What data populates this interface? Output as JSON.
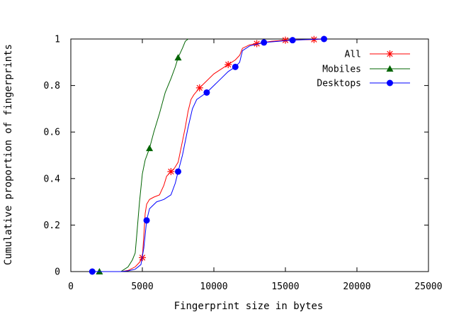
{
  "chart_data": {
    "type": "line",
    "xlabel": "Fingerprint size in bytes",
    "ylabel": "Cumulative proportion of fingerprints",
    "xlim": [
      0,
      25000
    ],
    "ylim": [
      0,
      1
    ],
    "xticks": [
      0,
      5000,
      10000,
      15000,
      20000,
      25000
    ],
    "yticks": [
      0,
      0.2,
      0.4,
      0.6,
      0.8,
      1
    ],
    "ytick_labels": [
      "0",
      "0.2",
      "0.4",
      "0.6",
      "0.8",
      "1"
    ],
    "grid": false,
    "legend_position": "top-right",
    "series": [
      {
        "name": "All",
        "color": "#ff0000",
        "marker": "star",
        "points": [
          [
            1500,
            0
          ],
          [
            3500,
            0
          ],
          [
            4000,
            0.005
          ],
          [
            4500,
            0.02
          ],
          [
            4800,
            0.04
          ],
          [
            5000,
            0.06
          ],
          [
            5100,
            0.15
          ],
          [
            5200,
            0.25
          ],
          [
            5300,
            0.29
          ],
          [
            5500,
            0.31
          ],
          [
            5800,
            0.32
          ],
          [
            6200,
            0.33
          ],
          [
            6500,
            0.37
          ],
          [
            6700,
            0.41
          ],
          [
            7000,
            0.43
          ],
          [
            7200,
            0.44
          ],
          [
            7500,
            0.47
          ],
          [
            7800,
            0.56
          ],
          [
            8000,
            0.62
          ],
          [
            8200,
            0.69
          ],
          [
            8400,
            0.74
          ],
          [
            8600,
            0.76
          ],
          [
            9000,
            0.79
          ],
          [
            9500,
            0.82
          ],
          [
            10000,
            0.85
          ],
          [
            10500,
            0.87
          ],
          [
            11000,
            0.89
          ],
          [
            11500,
            0.91
          ],
          [
            11800,
            0.93
          ],
          [
            12000,
            0.96
          ],
          [
            12500,
            0.975
          ],
          [
            13000,
            0.98
          ],
          [
            14000,
            0.99
          ],
          [
            15000,
            0.995
          ],
          [
            17000,
            0.998
          ],
          [
            17700,
            1.0
          ]
        ],
        "markers_at": [
          [
            5000,
            0.06
          ],
          [
            7000,
            0.43
          ],
          [
            9000,
            0.79
          ],
          [
            11000,
            0.89
          ],
          [
            13000,
            0.98
          ],
          [
            15000,
            0.995
          ],
          [
            17000,
            0.998
          ]
        ]
      },
      {
        "name": "Mobiles",
        "color": "#006400",
        "marker": "triangle",
        "points": [
          [
            1500,
            0
          ],
          [
            2000,
            0
          ],
          [
            3500,
            0
          ],
          [
            4000,
            0.02
          ],
          [
            4300,
            0.05
          ],
          [
            4500,
            0.08
          ],
          [
            4600,
            0.15
          ],
          [
            4800,
            0.3
          ],
          [
            5000,
            0.42
          ],
          [
            5200,
            0.48
          ],
          [
            5500,
            0.53
          ],
          [
            5800,
            0.6
          ],
          [
            6200,
            0.68
          ],
          [
            6600,
            0.77
          ],
          [
            7000,
            0.83
          ],
          [
            7300,
            0.88
          ],
          [
            7500,
            0.92
          ],
          [
            7800,
            0.96
          ],
          [
            8000,
            0.99
          ],
          [
            8200,
            1.0
          ]
        ],
        "markers_at": [
          [
            2000,
            0
          ],
          [
            5500,
            0.53
          ],
          [
            7500,
            0.92
          ]
        ]
      },
      {
        "name": "Desktops",
        "color": "#0000ff",
        "marker": "circle",
        "points": [
          [
            1500,
            0
          ],
          [
            3500,
            0
          ],
          [
            4000,
            0.003
          ],
          [
            4500,
            0.01
          ],
          [
            4900,
            0.03
          ],
          [
            5100,
            0.1
          ],
          [
            5300,
            0.22
          ],
          [
            5500,
            0.27
          ],
          [
            6000,
            0.3
          ],
          [
            6500,
            0.31
          ],
          [
            7000,
            0.33
          ],
          [
            7300,
            0.38
          ],
          [
            7500,
            0.43
          ],
          [
            7800,
            0.5
          ],
          [
            8200,
            0.62
          ],
          [
            8500,
            0.7
          ],
          [
            8800,
            0.74
          ],
          [
            9500,
            0.77
          ],
          [
            10000,
            0.8
          ],
          [
            10500,
            0.83
          ],
          [
            11000,
            0.86
          ],
          [
            11500,
            0.88
          ],
          [
            11800,
            0.9
          ],
          [
            12000,
            0.95
          ],
          [
            12500,
            0.97
          ],
          [
            13500,
            0.985
          ],
          [
            14500,
            0.99
          ],
          [
            15500,
            0.995
          ],
          [
            16500,
            0.998
          ],
          [
            17700,
            1.0
          ]
        ],
        "markers_at": [
          [
            1500,
            0
          ],
          [
            5300,
            0.22
          ],
          [
            7500,
            0.43
          ],
          [
            9500,
            0.77
          ],
          [
            11500,
            0.88
          ],
          [
            13500,
            0.985
          ],
          [
            15500,
            0.995
          ],
          [
            17700,
            1.0
          ]
        ]
      }
    ]
  }
}
